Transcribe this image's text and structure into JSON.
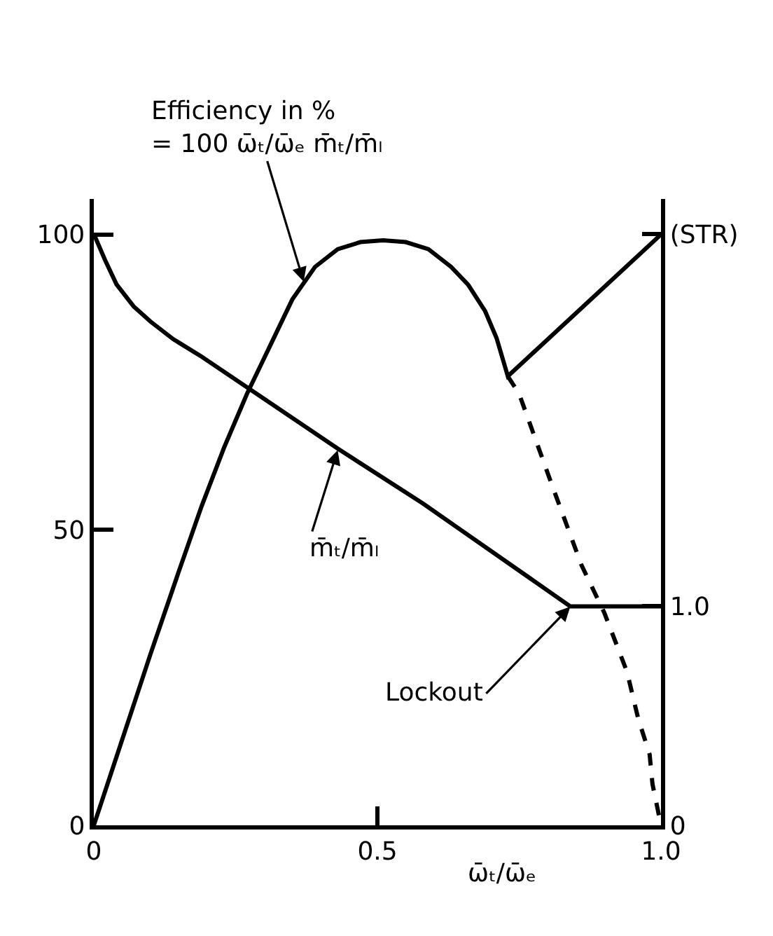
{
  "chart_data": {
    "type": "line",
    "annotations": [
      {
        "text": "Efficiency in %\n= 100 ω̄ₜ/ω̄ₑ m̄ₜ/m̄ₗ",
        "x": 0.37,
        "y": 92
      },
      {
        "text": "m̄ₜ/m̄ₗ",
        "x": 0.43,
        "y": 63.5
      },
      {
        "text": "Lockout",
        "x": 0.84,
        "y": 37
      }
    ],
    "xlabel": "ω̄ₜ/ω̄ₑ",
    "xlim": [
      0,
      1
    ],
    "xticks": [
      0,
      0.5,
      {
        "value": 1,
        "label": "1.0"
      }
    ],
    "ylim": [
      0,
      106
    ],
    "yticks": [
      0,
      50,
      100
    ],
    "y2lim": [
      0,
      2.86
    ],
    "y2ticks": [
      0,
      {
        "value": 1,
        "label": "1.0"
      },
      {
        "value": 2.7,
        "label": "(STR)"
      }
    ],
    "series": [
      {
        "color": "#000000",
        "x": [
          0,
          0.05,
          0.1,
          0.15,
          0.19,
          0.23,
          0.27,
          0.31,
          0.35,
          0.39,
          0.43,
          0.47,
          0.51,
          0.55,
          0.59,
          0.63,
          0.66,
          0.69,
          0.71,
          0.73,
          1.0
        ],
        "values": [
          0,
          14.5,
          29,
          43,
          54,
          64,
          73,
          81,
          89,
          94.5,
          97.5,
          98.7,
          99,
          98.7,
          97.5,
          94.5,
          91.5,
          87,
          82.5,
          76,
          100
        ]
      },
      {
        "color": "#000000",
        "line_style": "dashed",
        "x": [
          0.73,
          0.75,
          0.81,
          0.86,
          0.9,
          0.94,
          0.96,
          0.98,
          0.985,
          1.0
        ],
        "values": [
          76,
          73,
          57,
          44,
          36,
          26,
          18,
          12,
          7,
          0
        ]
      },
      {
        "color": "#000000",
        "axis": "y2",
        "x": [
          0,
          0.02,
          0.04,
          0.07,
          0.1,
          0.14,
          0.19,
          0.27,
          0.43,
          0.58,
          0.84,
          1.0
        ],
        "values": [
          2.7,
          2.58,
          2.47,
          2.37,
          2.3,
          2.22,
          2.14,
          2.0,
          1.72,
          1.47,
          1.0,
          1.0
        ]
      }
    ]
  }
}
